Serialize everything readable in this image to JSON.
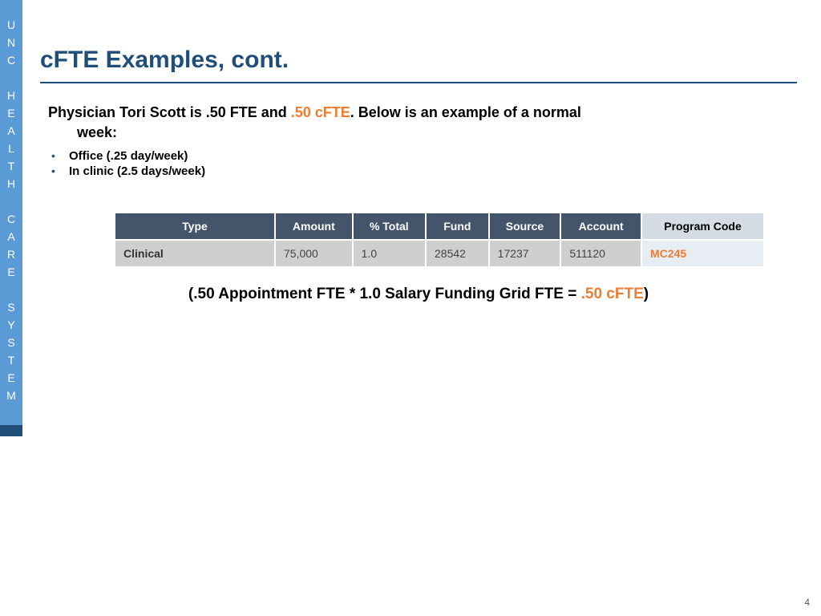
{
  "sidebar": {
    "label": "UNC HEALTH CARE SYSTEM"
  },
  "title": "cFTE Examples, cont.",
  "intro": {
    "prefix": "Physician Tori Scott is .50 FTE and ",
    "highlight": ".50 cFTE",
    "suffix": ".  Below is an example of a normal",
    "line2": "week:"
  },
  "bullets": [
    "Office (.25 day/week)",
    "In clinic (2.5 days/week)"
  ],
  "table": {
    "headers": [
      "Type",
      "Amount",
      "% Total",
      "Fund",
      "Source",
      "Account",
      "Program Code"
    ],
    "row": {
      "type": "Clinical",
      "amount": "75,000",
      "pct": "1.0",
      "fund": "28542",
      "source": "17237",
      "account": "511120",
      "program": "MC245"
    },
    "colors": {
      "header_bg": "#44546a",
      "header_fg": "#ffffff",
      "program_header_bg": "#d6dce5",
      "row_bg": "#cfcfcf",
      "program_cell_bg": "#e8ecf3",
      "program_cell_fg": "#ed7d31"
    }
  },
  "formula": {
    "prefix": "(.50 Appointment FTE  * 1.0 Salary Funding Grid FTE = ",
    "highlight": ".50 cFTE",
    "suffix": ")"
  },
  "page_number": "4",
  "colors": {
    "sidebar_bg": "#5b9bd5",
    "sidebar_accent": "#1f4e79",
    "title_color": "#1f4e79",
    "orange": "#ed7d31"
  }
}
